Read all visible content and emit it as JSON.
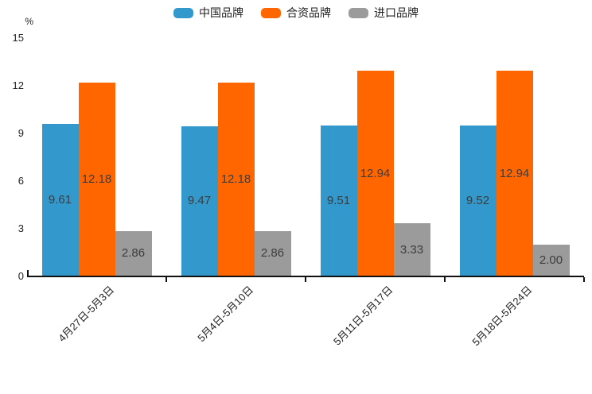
{
  "chart_data": {
    "type": "bar",
    "title": "",
    "unit_label": "%",
    "categories": [
      "4月27日-5月3日",
      "5月4日-5月10日",
      "5月11日-5月17日",
      "5月18日-5月24日"
    ],
    "series": [
      {
        "name": "中国品牌",
        "color": "#3398cc",
        "values": [
          9.61,
          9.47,
          9.51,
          9.52
        ]
      },
      {
        "name": "合资品牌",
        "color": "#ff6600",
        "values": [
          12.18,
          12.18,
          12.94,
          12.94
        ]
      },
      {
        "name": "进口品牌",
        "color": "#9b9b9b",
        "values": [
          2.86,
          2.86,
          3.33,
          2.0
        ]
      }
    ],
    "ylim": [
      0,
      15
    ],
    "yticks": [
      0,
      3,
      6,
      9,
      12,
      15
    ],
    "legend_position": "top",
    "grid": false,
    "value_labels": "inside",
    "value_format_decimals": 2,
    "colors": {
      "axis": "#111111",
      "tick_label_text": "#222222",
      "value_label_text": "#3d3d3d",
      "background": "#ffffff"
    }
  }
}
